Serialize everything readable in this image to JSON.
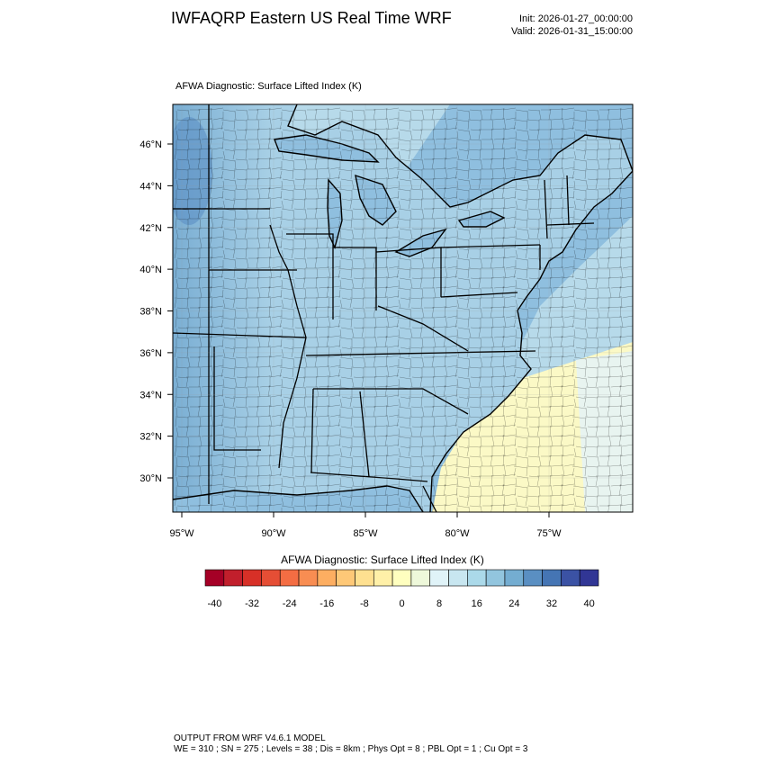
{
  "header": {
    "title": "IWFAQRP Eastern US Real Time WRF",
    "init": "Init: 2026-01-27_00:00:00",
    "valid": "Valid: 2026-01-31_15:00:00"
  },
  "panel": {
    "field_label": "AFWA Diagnostic: Surface Lifted Index   (K)"
  },
  "map": {
    "lat_labels": [
      "46°N",
      "44°N",
      "42°N",
      "40°N",
      "38°N",
      "36°N",
      "34°N",
      "32°N",
      "30°N"
    ],
    "lon_labels": [
      "95°W",
      "90°W",
      "85°W",
      "80°W",
      "75°W"
    ],
    "colors": {
      "ocean_near": "#8fbfdf",
      "ocean_far": "#b7daea",
      "land_base": "#a8d0e6",
      "land_west": "#7aaed3",
      "land_dark": "#5b90c4",
      "warm_sea": "#fbf9c6",
      "pale_sea": "#e8f4f0",
      "border": "#000000"
    }
  },
  "colorbar": {
    "label": "AFWA Diagnostic: Surface Lifted Index  (K)",
    "tick_labels": [
      "-40",
      "-32",
      "-24",
      "-16",
      "-8",
      "0",
      "8",
      "16",
      "24",
      "32",
      "40"
    ],
    "colors": [
      "#a50026",
      "#c11f2c",
      "#d73027",
      "#e54e35",
      "#f46d43",
      "#f88d52",
      "#fdae61",
      "#fec877",
      "#fee090",
      "#fff0a8",
      "#ffffbf",
      "#eef8da",
      "#e0f3f8",
      "#c8e6f0",
      "#abd9e9",
      "#92c5de",
      "#74add1",
      "#5a8fc2",
      "#4575b4",
      "#3b52a4",
      "#313695"
    ]
  },
  "footer": {
    "line1": "OUTPUT FROM WRF V4.6.1 MODEL",
    "line2": "WE = 310 ; SN = 275 ; Levels = 38 ; Dis = 8km ; Phys Opt = 8 ; PBL Opt = 1 ; Cu Opt = 3"
  }
}
